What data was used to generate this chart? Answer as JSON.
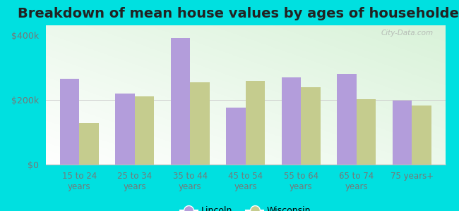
{
  "title": "Breakdown of mean house values by ages of householders",
  "categories": [
    "15 to 24\nyears",
    "25 to 34\nyears",
    "35 to 44\nyears",
    "45 to 54\nyears",
    "55 to 64\nyears",
    "65 to 74\nyears",
    "75 years+"
  ],
  "lincoln": [
    265000,
    220000,
    390000,
    175000,
    270000,
    280000,
    198000
  ],
  "wisconsin": [
    128000,
    210000,
    255000,
    258000,
    238000,
    203000,
    182000
  ],
  "lincoln_color": "#b39ddb",
  "wisconsin_color": "#c5cc8e",
  "background_color": "#00e0e0",
  "plot_bg_top_left": "#d8f0d0",
  "plot_bg_bottom_right": "#ffffff",
  "yticks": [
    0,
    200000,
    400000
  ],
  "ytick_labels": [
    "$0",
    "$200k",
    "$400k"
  ],
  "ylim": [
    0,
    430000
  ],
  "legend_lincoln": "Lincoln",
  "legend_wisconsin": "Wisconsin",
  "title_fontsize": 14,
  "bar_width": 0.35,
  "watermark": "City-Data.com"
}
